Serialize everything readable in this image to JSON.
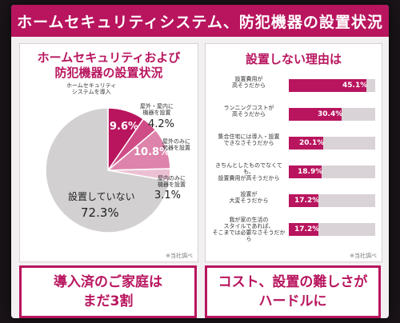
{
  "title": "ホームセキュリティシステム、防犯機器の設置状況",
  "left_panel": {
    "title_line1": "ホームセキュリティおよび",
    "title_line2": "防犯機器の設置状況",
    "source": "※当社調べ"
  },
  "right_panel": {
    "title": "設置しない理由は",
    "source": "※当社調べ"
  },
  "conclusion_left": {
    "line1": "導入済のご家庭は",
    "line2": "まだ3割"
  },
  "conclusion_right": {
    "line1": "コスト、設置の難しさが",
    "line2": "ハードルに"
  },
  "chart_data": [
    {
      "type": "pie",
      "slices": [
        {
          "label_line1": "ホームセキュリティ",
          "label_line2": "システムを導入",
          "value": 9.6,
          "value_label": "9.6%",
          "color": "#b8155e"
        },
        {
          "label_line1": "屋外・屋内に",
          "label_line2": "機器を設置",
          "value": 4.2,
          "value_label": "4.2%",
          "color": "#cf4c86"
        },
        {
          "label_line1": "屋外のみに",
          "label_line2": "機器を設置",
          "value": 10.8,
          "value_label": "10.8%",
          "color": "#de83ab"
        },
        {
          "label_line1": "屋内のみに",
          "label_line2": "機器を設置",
          "value": 3.1,
          "value_label": "3.1%",
          "color": "#ecc0d3"
        },
        {
          "label_line1": "設置していない",
          "label_line2": "",
          "value": 72.3,
          "value_label": "72.3%",
          "color": "#d2d0d1"
        }
      ]
    },
    {
      "type": "bar",
      "orientation": "horizontal",
      "xlim": [
        0,
        50
      ],
      "bars": [
        {
          "label_line1": "設置費用が",
          "label_line2": "高そうだから",
          "value": 45.1,
          "value_label": "45.1%"
        },
        {
          "label_line1": "ランニングコストが",
          "label_line2": "高そうだから",
          "value": 30.4,
          "value_label": "30.4%"
        },
        {
          "label_line1": "集合住宅には導入・設置",
          "label_line2": "できなさそうだから",
          "value": 20.1,
          "value_label": "20.1%"
        },
        {
          "label_line1": "きちんとしたものでなくても、",
          "label_line2": "設置費用が高そうだから",
          "value": 18.9,
          "value_label": "18.9%"
        },
        {
          "label_line1": "設置が",
          "label_line2": "大変そうだから",
          "value": 17.2,
          "value_label": "17.2%"
        },
        {
          "label_line1": "我が家の生活の",
          "label_line2": "スタイルであれば、",
          "label_line3": "そこまでは必要なさそうだから",
          "value": 17.2,
          "value_label": "17.2%"
        }
      ],
      "color": "#b8155e",
      "track_color": "#d9d2d6"
    }
  ]
}
